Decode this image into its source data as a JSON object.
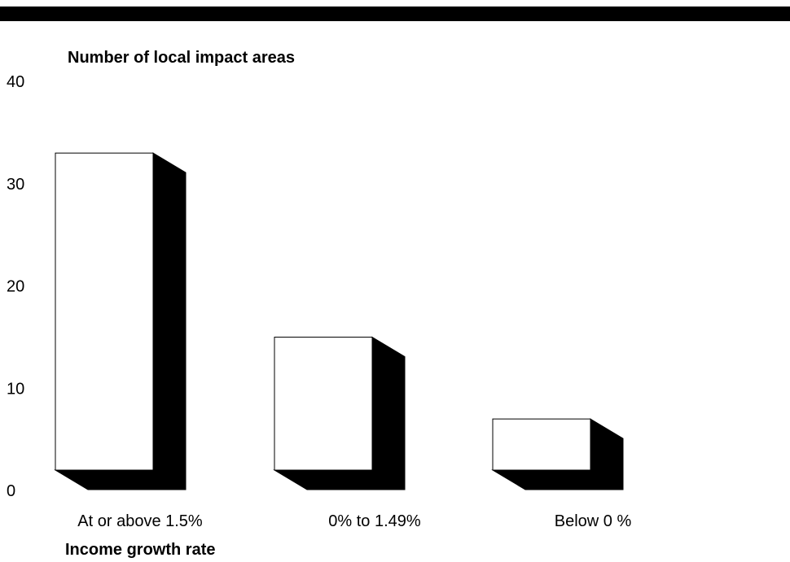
{
  "chart_data": {
    "type": "bar",
    "style": "3d",
    "categories": [
      "At or above 1.5%",
      "0% to 1.49%",
      "Below 0 %"
    ],
    "values": [
      31,
      13,
      5
    ],
    "ylabel": "Number of local impact areas",
    "xlabel": "Income growth rate",
    "ylim": [
      0,
      40
    ],
    "yticks": [
      0,
      10,
      20,
      30,
      40
    ],
    "grid": false,
    "colors": {
      "face": "#ffffff",
      "side": "#000000",
      "stroke": "#000000"
    }
  }
}
